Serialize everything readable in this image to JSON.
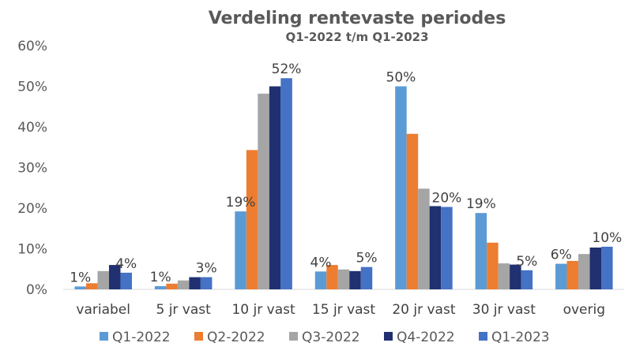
{
  "chart_data": {
    "type": "bar",
    "title": "Verdeling rentevaste periodes",
    "subtitle": "Q1-2022 t/m Q1-2023",
    "xlabel": "",
    "ylabel": "",
    "ylim": [
      0,
      60
    ],
    "yticks": [
      "0%",
      "10%",
      "20%",
      "30%",
      "40%",
      "50%",
      "60%"
    ],
    "grid": false,
    "legend_position": "bottom",
    "categories": [
      "variabel",
      "5 jr vast",
      "10 jr vast",
      "15 jr vast",
      "20 jr vast",
      "30 jr vast",
      "overig"
    ],
    "series": [
      {
        "name": "Q1-2022",
        "color": "#5B9BD5",
        "values": [
          0.7,
          0.8,
          19.2,
          4.4,
          50.0,
          18.8,
          6.3
        ]
      },
      {
        "name": "Q2-2022",
        "color": "#ED7D31",
        "values": [
          1.5,
          1.4,
          34.3,
          6.0,
          38.3,
          11.5,
          7.0
        ]
      },
      {
        "name": "Q3-2022",
        "color": "#A5A5A5",
        "values": [
          4.5,
          2.2,
          48.2,
          4.9,
          24.8,
          6.4,
          8.7
        ]
      },
      {
        "name": "Q4-2022",
        "color": "#203070",
        "values": [
          6.0,
          3.0,
          50.0,
          4.5,
          20.5,
          6.1,
          10.3
        ]
      },
      {
        "name": "Q1-2023",
        "color": "#4472C4",
        "values": [
          4.1,
          3.0,
          52.0,
          5.5,
          20.3,
          4.7,
          10.5
        ]
      }
    ],
    "data_labels": [
      {
        "category": "variabel",
        "series": "Q1-2022",
        "text": "1%"
      },
      {
        "category": "variabel",
        "series": "Q1-2023",
        "text": "4%"
      },
      {
        "category": "5 jr vast",
        "series": "Q1-2022",
        "text": "1%"
      },
      {
        "category": "5 jr vast",
        "series": "Q1-2023",
        "text": "3%"
      },
      {
        "category": "10 jr vast",
        "series": "Q1-2022",
        "text": "19%"
      },
      {
        "category": "10 jr vast",
        "series": "Q1-2023",
        "text": "52%"
      },
      {
        "category": "15 jr vast",
        "series": "Q1-2022",
        "text": "4%"
      },
      {
        "category": "15 jr vast",
        "series": "Q1-2023",
        "text": "5%"
      },
      {
        "category": "20 jr vast",
        "series": "Q1-2022",
        "text": "50%"
      },
      {
        "category": "20 jr vast",
        "series": "Q1-2023",
        "text": "20%"
      },
      {
        "category": "30 jr vast",
        "series": "Q1-2022",
        "text": "19%"
      },
      {
        "category": "30 jr vast",
        "series": "Q1-2023",
        "text": "5%"
      },
      {
        "category": "overig",
        "series": "Q1-2022",
        "text": "6%"
      },
      {
        "category": "overig",
        "series": "Q1-2023",
        "text": "10%"
      }
    ]
  }
}
